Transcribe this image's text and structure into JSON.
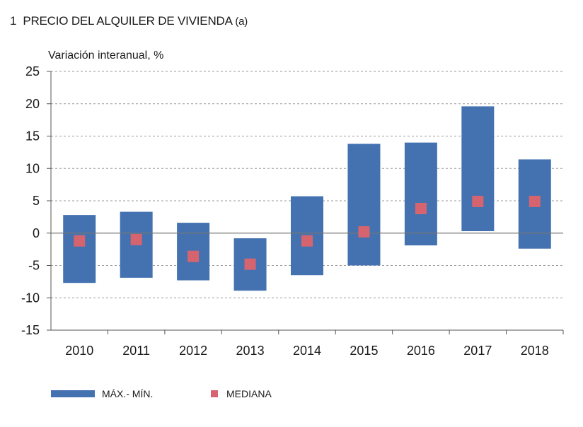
{
  "title": {
    "number": "1",
    "text": "PRECIO DEL ALQUILER DE VIVIENDA",
    "suffix": "(a)"
  },
  "colors": {
    "range": "#4472b0",
    "median": "#d6646e",
    "axis": "#555555",
    "grid": "#9a9a9a"
  },
  "chart_data": {
    "type": "bar",
    "ylabel": "Variación interanual, %",
    "ylim": [
      -15,
      25
    ],
    "yticks": [
      25,
      20,
      15,
      10,
      5,
      0,
      -5,
      -10,
      -15
    ],
    "grid": "dashed horizontal",
    "legend_position": "bottom",
    "categories": [
      "2010",
      "2011",
      "2012",
      "2013",
      "2014",
      "2015",
      "2016",
      "2017",
      "2018"
    ],
    "series": [
      {
        "name": "MÁX.- MÍN.",
        "kind": "range",
        "max": [
          2.8,
          3.3,
          1.6,
          -0.8,
          5.7,
          13.8,
          14.0,
          19.6,
          11.4
        ],
        "min": [
          -7.7,
          -6.9,
          -7.3,
          -8.9,
          -6.5,
          -5.0,
          -1.9,
          0.3,
          -2.4
        ]
      },
      {
        "name": "MEDIANA",
        "kind": "marker",
        "values": [
          -1.2,
          -1.0,
          -3.6,
          -4.8,
          -1.2,
          0.2,
          3.8,
          4.9,
          4.9
        ]
      }
    ]
  },
  "legend": {
    "range_label": "MÁX.- MÍN.",
    "median_label": "MEDIANA"
  }
}
